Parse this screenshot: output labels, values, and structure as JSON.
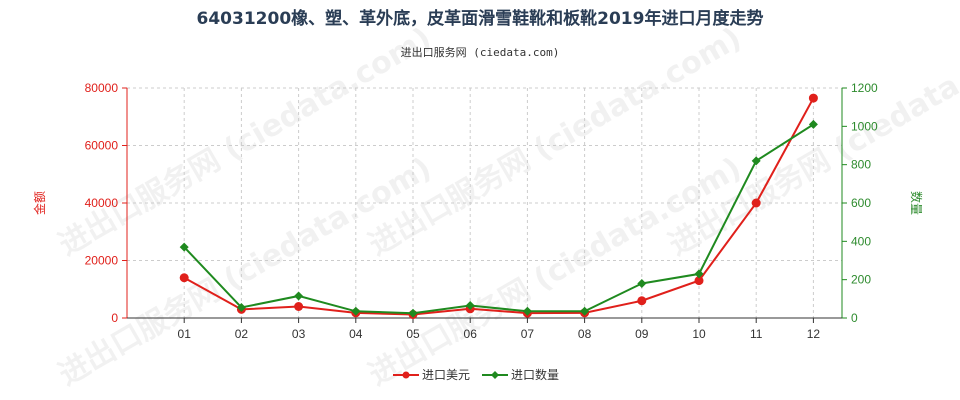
{
  "colors": {
    "import_value": "#e0201b",
    "import_quantity": "#1f8a1f",
    "grid": "#cccccc",
    "title": "#2a3d55"
  },
  "watermark": "进出口服务网 (ciedata.com)",
  "chart_data": {
    "type": "line",
    "title": "64031200橡、塑、革外底，皮革面滑雪鞋靴和板靴2019年进口月度走势",
    "subtitle": "进出口服务网 (ciedata.com)",
    "categories": [
      "01",
      "02",
      "03",
      "04",
      "05",
      "06",
      "07",
      "08",
      "09",
      "10",
      "11",
      "12"
    ],
    "y_left": {
      "label": "金额",
      "ylim": [
        0,
        80000
      ],
      "ticks": [
        0,
        20000,
        40000,
        60000,
        80000
      ]
    },
    "y_right": {
      "label": "数量",
      "ylim": [
        0,
        1200
      ],
      "ticks": [
        0,
        200,
        400,
        600,
        800,
        1000,
        1200
      ]
    },
    "grid": true,
    "legend_position": "bottom-center",
    "series": [
      {
        "name": "进口美元",
        "axis": "left",
        "color": "#e0201b",
        "marker": "circle",
        "values": [
          14000,
          3000,
          4000,
          1800,
          1200,
          3200,
          1700,
          1800,
          6000,
          13000,
          40000,
          76500
        ]
      },
      {
        "name": "进口数量",
        "axis": "right",
        "color": "#1f8a1f",
        "marker": "diamond",
        "values": [
          370,
          55,
          115,
          35,
          25,
          65,
          35,
          35,
          180,
          230,
          820,
          1010
        ]
      }
    ]
  }
}
